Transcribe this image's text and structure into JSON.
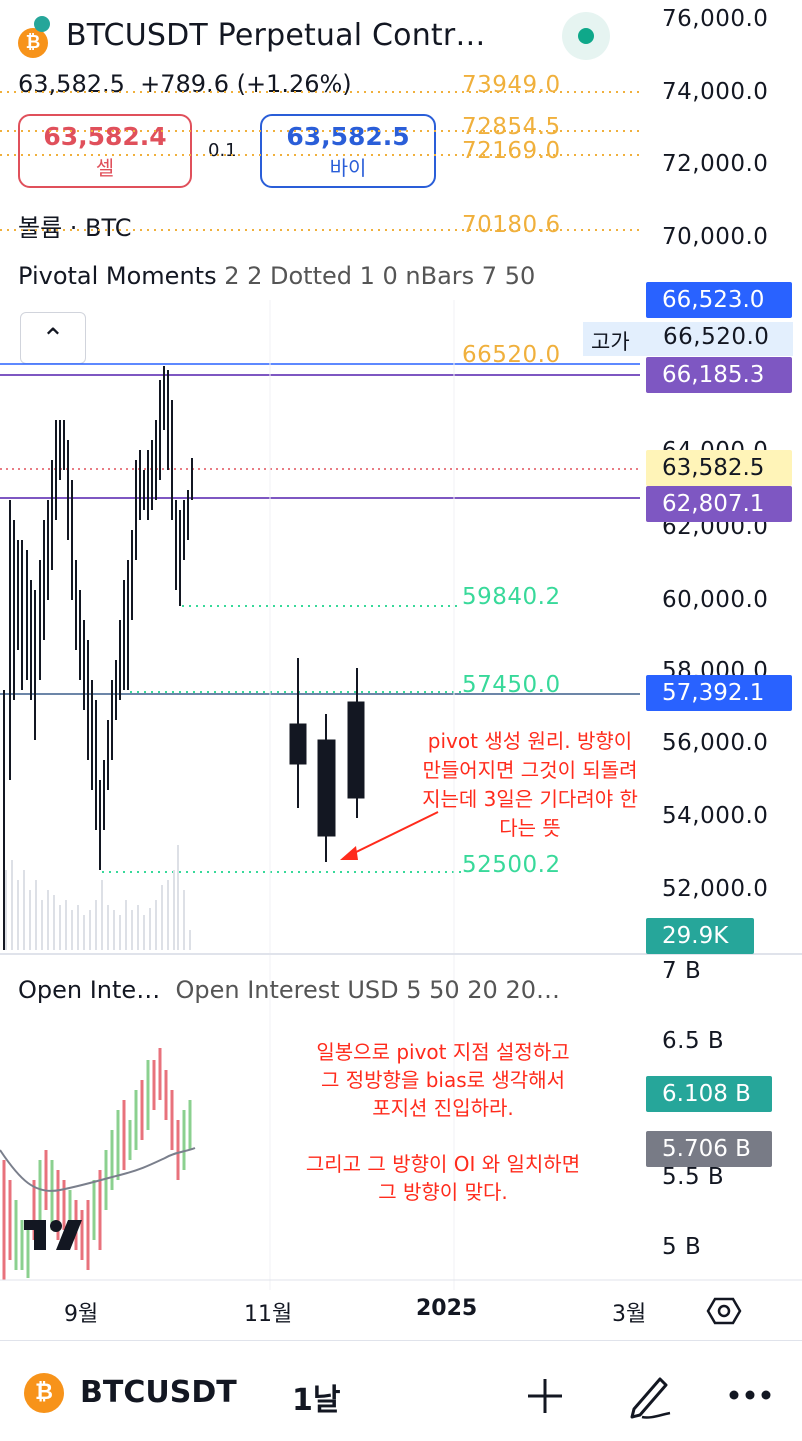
{
  "header": {
    "title": "BTCUSDT Perpetual Contr…",
    "price": "63,582.5",
    "change": "+789.6 (+1.26%)",
    "sell_price": "63,582.4",
    "sell_label": "셀",
    "spread": "0.1",
    "buy_price": "63,582.5",
    "buy_label": "바이",
    "symbol_icon": "bitcoin-icon",
    "symbol_icon_glyph": "₿"
  },
  "indicators": {
    "volume_label": "볼륨 · BTC",
    "pivotal_name": "Pivotal Moments",
    "pivotal_params": "2 2 Dotted 1 0 nBars 7 50",
    "oi_name": "Open Inte…",
    "oi_params": "Open Interest USD 5 50 20 20…",
    "collapse_glyph": "^"
  },
  "levels": {
    "orange": [
      "73949.0",
      "72854.5",
      "72169.0",
      "70180.6",
      "66520.0"
    ],
    "green": [
      "59840.2",
      "57450.0",
      "52500.2"
    ]
  },
  "price_axis": [
    "76,000.0",
    "74,000.0",
    "72,000.0",
    "70,000.0",
    "64,000.0",
    "62,000.0",
    "60,000.0",
    "58,000.0",
    "56,000.0",
    "54,000.0",
    "52,000.0"
  ],
  "axis_tags": {
    "t1": "66,523.0",
    "t2_label": "고가",
    "t2": "66,520.0",
    "t3": "66,185.3",
    "t4": "63,582.5",
    "t5": "62,807.1",
    "t6": "57,392.1",
    "t7": "29.9K",
    "colors": {
      "blue": "#2962ff",
      "purple": "#7e57c2",
      "yellow": "#fff4b8",
      "green": "#26a69a",
      "gray": "#787b86",
      "highlight": "#e3effd"
    }
  },
  "oi_axis": [
    "7 B",
    "6.5 B",
    "5.5 B",
    "5 B"
  ],
  "oi_tags": {
    "a": "6.108 B",
    "b": "5.706 B"
  },
  "annotations": {
    "pivot": [
      "pivot 생성 원리. 방향이",
      "만들어지면 그것이 되돌려",
      "지는데 3일은 기다려야 한",
      "다는 뜻"
    ],
    "bias": [
      "일봉으로 pivot 지점 설정하고",
      "그 정방향을 bias로 생각해서",
      "포지션 진입하라.",
      "",
      "그리고 그 방향이 OI 와 일치하면",
      "그 방향이 맞다."
    ]
  },
  "time_axis": [
    "9월",
    "11월",
    "2025",
    "3월"
  ],
  "bottom_bar": {
    "symbol": "BTCUSDT",
    "timeframe": "1날",
    "add_icon": "plus-icon",
    "draw_icon": "pencil-icon",
    "more_icon": "more-icon",
    "settings_icon": "settings-icon"
  },
  "brand": {
    "logo": "TV"
  }
}
